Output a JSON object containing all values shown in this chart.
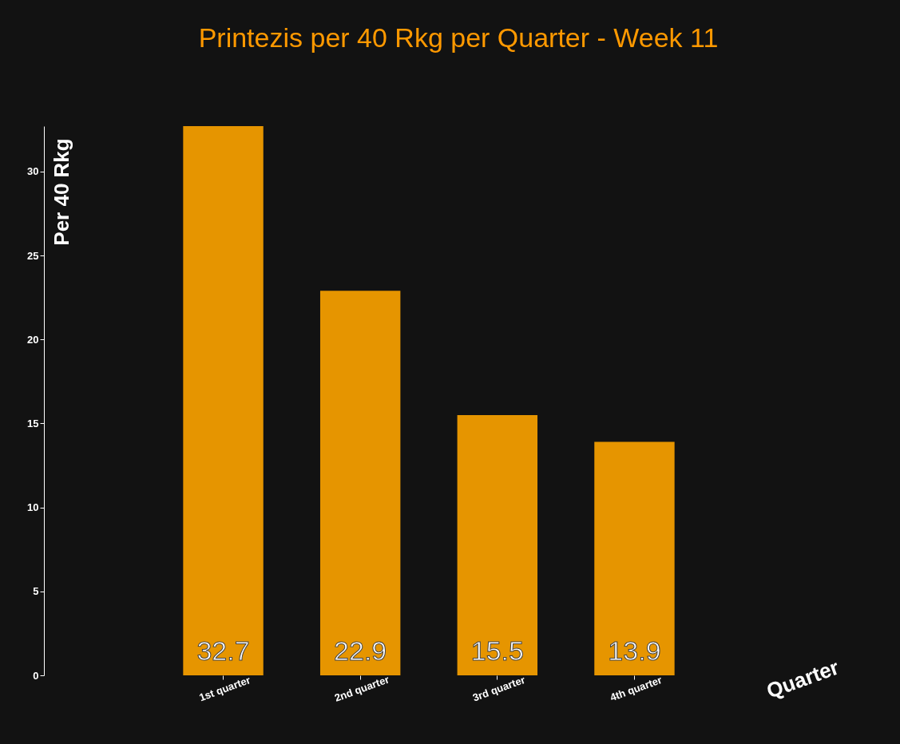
{
  "chart_data": {
    "type": "bar",
    "title": "Printezis per 40 Rkg per Quarter - Week 11",
    "xlabel": "Quarter",
    "ylabel": "Per 40 Rkg",
    "categories": [
      "1st quarter",
      "2nd quarter",
      "3rd quarter",
      "4th quarter"
    ],
    "values": [
      32.7,
      22.9,
      15.5,
      13.9
    ],
    "color": "#e69500",
    "ylim": [
      0,
      32.7
    ],
    "yticks": [
      0,
      5,
      10,
      15,
      20,
      25,
      30
    ],
    "grid": false,
    "data_labels": true
  }
}
